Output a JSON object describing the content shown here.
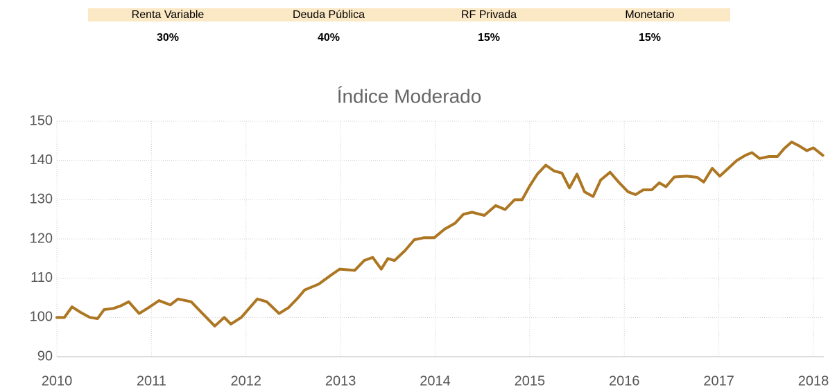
{
  "allocation": {
    "names": [
      "Renta Variable",
      "Deuda Pública",
      "RF Privada",
      "Monetario"
    ],
    "weights": [
      "30%",
      "40%",
      "15%",
      "15%"
    ]
  },
  "chart_data": {
    "type": "line",
    "title": "Índice Moderado",
    "x": [
      2010.0,
      2010.08,
      2010.16,
      2010.25,
      2010.35,
      2010.43,
      2010.5,
      2010.6,
      2010.68,
      2010.76,
      2010.87,
      2010.97,
      2011.08,
      2011.2,
      2011.28,
      2011.42,
      2011.52,
      2011.67,
      2011.77,
      2011.84,
      2011.95,
      2012.04,
      2012.12,
      2012.22,
      2012.35,
      2012.45,
      2012.55,
      2012.62,
      2012.77,
      2012.9,
      2012.99,
      2013.15,
      2013.25,
      2013.34,
      2013.43,
      2013.5,
      2013.57,
      2013.68,
      2013.78,
      2013.88,
      2013.99,
      2014.1,
      2014.21,
      2014.3,
      2014.39,
      2014.52,
      2014.64,
      2014.74,
      2014.84,
      2014.92,
      2015.0,
      2015.08,
      2015.17,
      2015.26,
      2015.34,
      2015.42,
      2015.5,
      2015.58,
      2015.67,
      2015.75,
      2015.85,
      2015.94,
      2016.04,
      2016.12,
      2016.2,
      2016.29,
      2016.37,
      2016.44,
      2016.53,
      2016.66,
      2016.77,
      2016.84,
      2016.93,
      2017.01,
      2017.1,
      2017.19,
      2017.28,
      2017.35,
      2017.43,
      2017.53,
      2017.62,
      2017.69,
      2017.77,
      2017.85,
      2017.93,
      2018.0,
      2018.1
    ],
    "series": [
      {
        "name": "Índice Moderado",
        "color": "#ad7622",
        "values": [
          100,
          100,
          102.7,
          101.3,
          100,
          99.7,
          102,
          102.3,
          103,
          104,
          101,
          102.5,
          104.3,
          103.2,
          104.7,
          104,
          101.5,
          97.8,
          100,
          98.3,
          100,
          102.5,
          104.7,
          104,
          101,
          102.5,
          105,
          107,
          108.5,
          110.8,
          112.3,
          112,
          114.5,
          115.3,
          112.3,
          115,
          114.5,
          117,
          119.8,
          120.3,
          120.3,
          122.5,
          124,
          126.3,
          126.8,
          126,
          128.5,
          127.5,
          130,
          130,
          133.5,
          136.5,
          138.8,
          137.3,
          136.8,
          133,
          136.5,
          132,
          130.8,
          135,
          137,
          134.5,
          132,
          131.3,
          132.5,
          132.5,
          134.3,
          133.3,
          135.8,
          136,
          135.7,
          134.5,
          138,
          136,
          138,
          140,
          141.3,
          142,
          140.5,
          141,
          141,
          143,
          144.7,
          143.7,
          142.5,
          143.2,
          141.3
        ]
      }
    ],
    "xlim": [
      2010,
      2018.11
    ],
    "xticks": [
      2010,
      2011,
      2012,
      2013,
      2014,
      2015,
      2016,
      2017,
      2018
    ],
    "ylim": [
      90,
      150
    ],
    "yticks": [
      90,
      100,
      110,
      120,
      130,
      140,
      150
    ],
    "grid": true
  }
}
